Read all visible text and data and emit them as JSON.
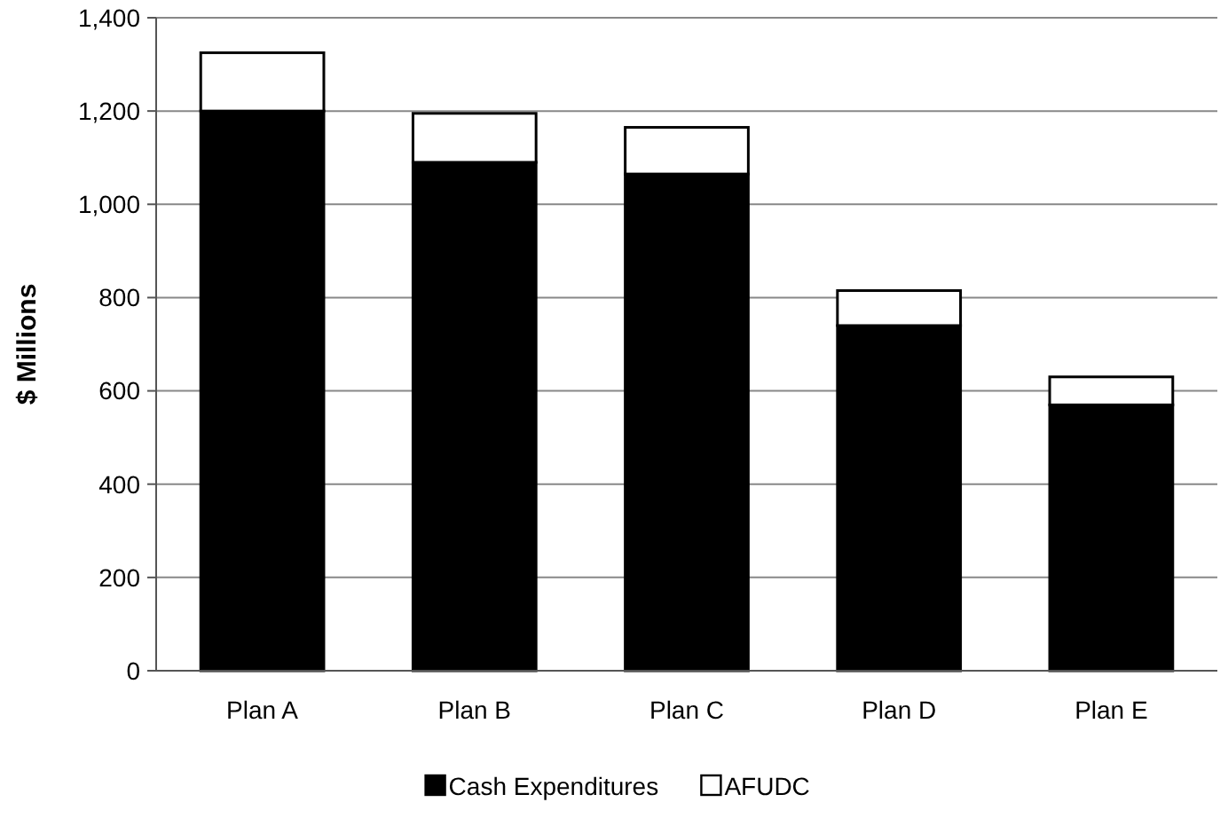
{
  "chart_data": {
    "type": "bar",
    "stacked": true,
    "ylabel": "$ Millions",
    "categories": [
      "Plan A",
      "Plan B",
      "Plan C",
      "Plan D",
      "Plan E"
    ],
    "series": [
      {
        "name": "Cash Expenditures",
        "color": "#000000",
        "values": [
          1200,
          1090,
          1065,
          740,
          570
        ]
      },
      {
        "name": "AFUDC",
        "color": "#ffffff",
        "values": [
          125,
          105,
          100,
          75,
          60
        ]
      }
    ],
    "ylim": [
      0,
      1400
    ],
    "yticks": [
      {
        "value": 0,
        "label": "0"
      },
      {
        "value": 200,
        "label": "200"
      },
      {
        "value": 400,
        "label": "400"
      },
      {
        "value": 600,
        "label": "600"
      },
      {
        "value": 800,
        "label": "800"
      },
      {
        "value": 1000,
        "label": "1,000"
      },
      {
        "value": 1200,
        "label": "1,200"
      },
      {
        "value": 1400,
        "label": "1,400"
      }
    ],
    "grid": "y",
    "legend": "bottom"
  }
}
